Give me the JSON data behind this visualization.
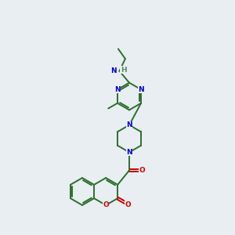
{
  "bg_color": "#e8eef2",
  "bond_color": "#2d6e2d",
  "N_color": "#0000cc",
  "O_color": "#cc0000",
  "H_color": "#5a8a5a",
  "lw": 1.4,
  "dbo": 0.055,
  "fs": 6.5
}
